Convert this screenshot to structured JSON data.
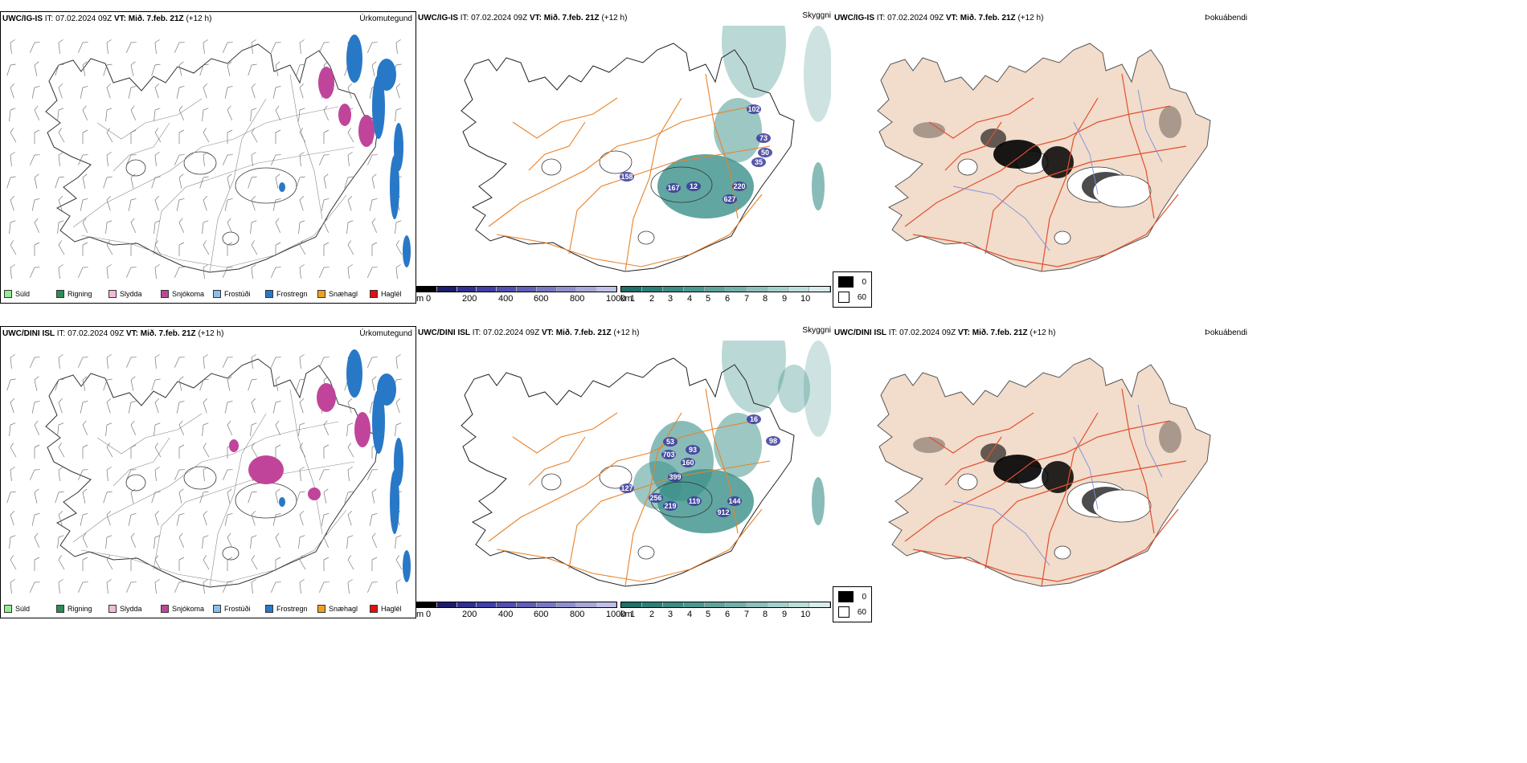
{
  "rows": [
    {
      "model": "UWC/IG-IS",
      "it_label": "IT:",
      "it": "07.02.2024 09Z",
      "vt_label": "VT:",
      "vt": "Mið. 7.feb. 21Z",
      "lead": "(+12 h)",
      "titles": [
        "Úrkomutegund",
        "Skyggni",
        "Þokuábendi"
      ],
      "ceiling_labels": [
        "158",
        "167",
        "12",
        "627",
        "220",
        "102",
        "73",
        "50",
        "35"
      ]
    },
    {
      "model": "UWC/DINI ISL",
      "it_label": "IT:",
      "it": "07.02.2024 09Z",
      "vt_label": "VT:",
      "vt": "Mið. 7.feb. 21Z",
      "lead": "(+12 h)",
      "titles": [
        "Úrkomutegund",
        "Skyggni",
        "Þokuábendi"
      ],
      "ceiling_labels": [
        "127",
        "703",
        "53",
        "160",
        "93",
        "399",
        "256",
        "219",
        "119",
        "912",
        "144",
        "16",
        "98"
      ]
    }
  ],
  "precip_legend": [
    {
      "label": "Súld",
      "color": "#90ee90"
    },
    {
      "label": "Rigning",
      "color": "#2e8b57"
    },
    {
      "label": "Slydda",
      "color": "#f5b8d8"
    },
    {
      "label": "Snjókoma",
      "color": "#c0459a"
    },
    {
      "label": "Frostúði",
      "color": "#87bfef"
    },
    {
      "label": "Frostregn",
      "color": "#2878c8"
    },
    {
      "label": "Snæhagl",
      "color": "#f0a020"
    },
    {
      "label": "Haglél",
      "color": "#e01010"
    }
  ],
  "ceiling_bar": {
    "unit": "m",
    "ticks": [
      "0",
      "200",
      "400",
      "600",
      "800",
      "1000"
    ],
    "colors": [
      "#000000",
      "#1c1c6c",
      "#303090",
      "#4040a8",
      "#5050b0",
      "#6060b8",
      "#7878c4",
      "#9090d0",
      "#a8a8dc",
      "#c0c0e8"
    ]
  },
  "vis_bar": {
    "unit": "km",
    "ticks": [
      "1",
      "2",
      "3",
      "4",
      "5",
      "6",
      "7",
      "8",
      "9",
      "10"
    ],
    "colors": [
      "#1e7068",
      "#2a8078",
      "#3a8c84",
      "#4a9890",
      "#5ea49c",
      "#74b0aa",
      "#8cc0ba",
      "#a4d0ca",
      "#bcdeda",
      "#d6ecea"
    ]
  },
  "fog_legend": [
    {
      "label": "0",
      "color": "#000000"
    },
    {
      "label": "60",
      "color": "#ffffff"
    }
  ],
  "colors": {
    "snow": "#c0459a",
    "freezing_rain": "#2878c8",
    "visibility": "#3a9088",
    "roads": "#e8822a",
    "fog_land": "#f2dccb",
    "fog_roads": "#e05030",
    "rivers": "#8090e0"
  }
}
